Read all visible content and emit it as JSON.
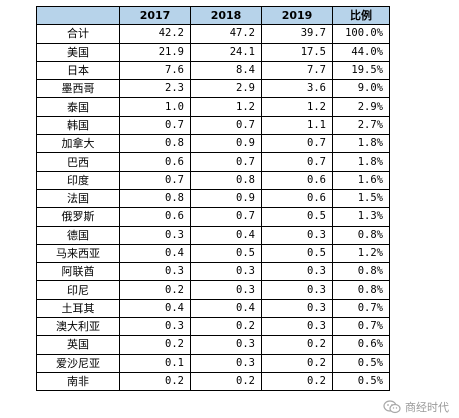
{
  "table": {
    "headers": [
      "",
      "2017",
      "2018",
      "2019",
      "比例"
    ],
    "rows": [
      {
        "name": "合计",
        "y2017": "42.2",
        "y2018": "47.2",
        "y2019": "39.7",
        "ratio": "100.0%"
      },
      {
        "name": "美国",
        "y2017": "21.9",
        "y2018": "24.1",
        "y2019": "17.5",
        "ratio": "44.0%"
      },
      {
        "name": "日本",
        "y2017": "7.6",
        "y2018": "8.4",
        "y2019": "7.7",
        "ratio": "19.5%"
      },
      {
        "name": "墨西哥",
        "y2017": "2.3",
        "y2018": "2.9",
        "y2019": "3.6",
        "ratio": "9.0%"
      },
      {
        "name": "泰国",
        "y2017": "1.0",
        "y2018": "1.2",
        "y2019": "1.2",
        "ratio": "2.9%"
      },
      {
        "name": "韩国",
        "y2017": "0.7",
        "y2018": "0.7",
        "y2019": "1.1",
        "ratio": "2.7%"
      },
      {
        "name": "加拿大",
        "y2017": "0.8",
        "y2018": "0.9",
        "y2019": "0.7",
        "ratio": "1.8%"
      },
      {
        "name": "巴西",
        "y2017": "0.6",
        "y2018": "0.7",
        "y2019": "0.7",
        "ratio": "1.8%"
      },
      {
        "name": "印度",
        "y2017": "0.7",
        "y2018": "0.8",
        "y2019": "0.6",
        "ratio": "1.6%"
      },
      {
        "name": "法国",
        "y2017": "0.8",
        "y2018": "0.9",
        "y2019": "0.6",
        "ratio": "1.5%"
      },
      {
        "name": "俄罗斯",
        "y2017": "0.6",
        "y2018": "0.7",
        "y2019": "0.5",
        "ratio": "1.3%"
      },
      {
        "name": "德国",
        "y2017": "0.3",
        "y2018": "0.4",
        "y2019": "0.3",
        "ratio": "0.8%"
      },
      {
        "name": "马来西亚",
        "y2017": "0.4",
        "y2018": "0.5",
        "y2019": "0.5",
        "ratio": "1.2%"
      },
      {
        "name": "阿联酋",
        "y2017": "0.3",
        "y2018": "0.3",
        "y2019": "0.3",
        "ratio": "0.8%"
      },
      {
        "name": "印尼",
        "y2017": "0.2",
        "y2018": "0.3",
        "y2019": "0.3",
        "ratio": "0.8%"
      },
      {
        "name": "土耳其",
        "y2017": "0.4",
        "y2018": "0.4",
        "y2019": "0.3",
        "ratio": "0.7%"
      },
      {
        "name": "澳大利亚",
        "y2017": "0.3",
        "y2018": "0.2",
        "y2019": "0.3",
        "ratio": "0.7%"
      },
      {
        "name": "英国",
        "y2017": "0.2",
        "y2018": "0.3",
        "y2019": "0.2",
        "ratio": "0.6%"
      },
      {
        "name": "爱沙尼亚",
        "y2017": "0.1",
        "y2018": "0.3",
        "y2019": "0.2",
        "ratio": "0.5%"
      },
      {
        "name": "南非",
        "y2017": "0.2",
        "y2018": "0.2",
        "y2019": "0.2",
        "ratio": "0.5%"
      }
    ]
  },
  "watermark": {
    "text": "商经时代",
    "icon": "wechat-icon",
    "color": "#9a9a9a"
  },
  "colors": {
    "header_bg": "#b7d3ea",
    "border": "#000000"
  }
}
